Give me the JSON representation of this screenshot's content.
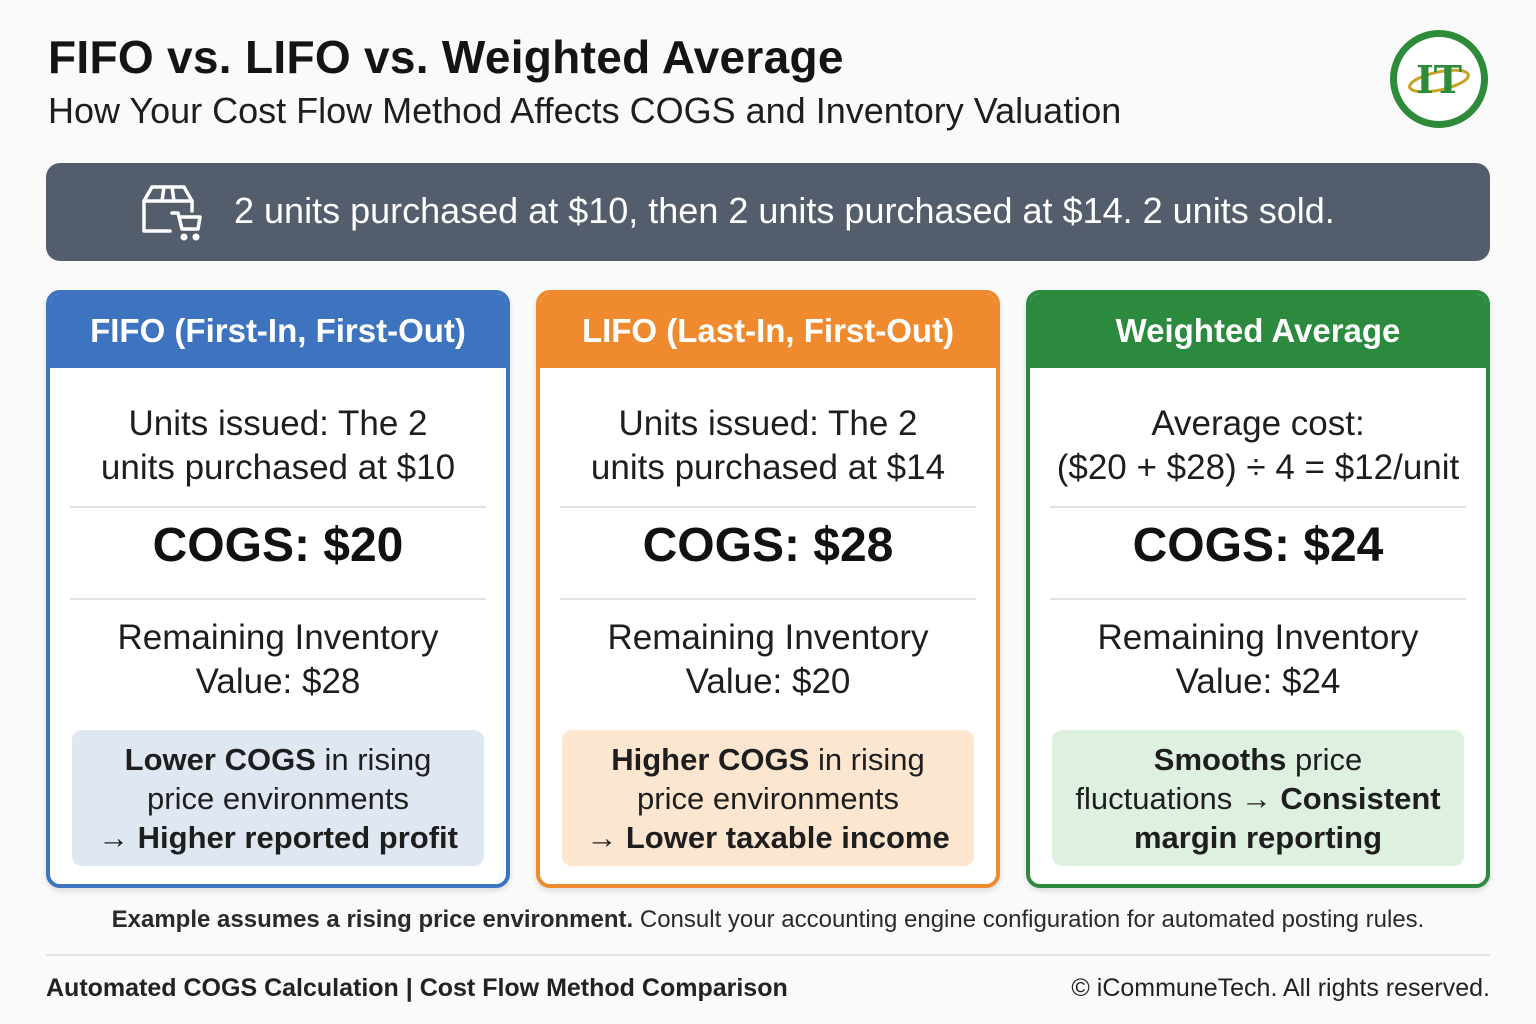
{
  "header": {
    "title": "FIFO vs. LIFO vs. Weighted Average",
    "subtitle": "How Your Cost Flow Method Affects COGS and Inventory Valuation",
    "logo_text": "IT"
  },
  "banner": {
    "icon": "box-cart-icon",
    "text": "2 units purchased at $10, then 2 units purchased at $14. 2 units sold."
  },
  "colors": {
    "fifo": "#3d73bf",
    "lifo": "#ef8a2e",
    "weighted": "#2b8a3e",
    "banner": "#545d6b",
    "fifo_note_bg": "#dfe8f2",
    "lifo_note_bg": "#fde6cf",
    "weighted_note_bg": "#def0e0"
  },
  "cards": [
    {
      "header": "FIFO (First-In, First-Out)",
      "line1_a": "Units issued: The 2",
      "line1_b": "units purchased at $10",
      "cogs": "COGS: $20",
      "remaining_a": "Remaining Inventory",
      "remaining_b": "Value: $28",
      "note": {
        "bold1": "Lower COGS",
        "text1": " in rising",
        "text2": "price environments",
        "arrow": "→ ",
        "bold2": "Higher reported profit"
      }
    },
    {
      "header": "LIFO (Last-In, First-Out)",
      "line1_a": "Units issued: The 2",
      "line1_b": "units purchased at $14",
      "cogs": "COGS: $28",
      "remaining_a": "Remaining Inventory",
      "remaining_b": "Value: $20",
      "note": {
        "bold1": "Higher COGS",
        "text1": " in rising",
        "text2": "price environments",
        "arrow": "→ ",
        "bold2": "Lower taxable income"
      }
    },
    {
      "header": "Weighted Average",
      "line1_a": "Average cost:",
      "line1_b": "($20 + $28) ÷ 4 = $12/unit",
      "cogs": "COGS: $24",
      "remaining_a": "Remaining Inventory",
      "remaining_b": "Value: $24",
      "note": {
        "bold1": "Smooths",
        "text1": " price",
        "text2": "fluctuations → ",
        "bold2": "Consistent",
        "bold3": "margin reporting"
      }
    }
  ],
  "footnote": {
    "bold": "Example assumes a rising price environment.",
    "text": " Consult your accounting engine configuration for automated posting rules."
  },
  "footer": {
    "left": "Automated COGS Calculation | Cost Flow Method Comparison",
    "right": "© iCommuneTech. All rights reserved."
  }
}
